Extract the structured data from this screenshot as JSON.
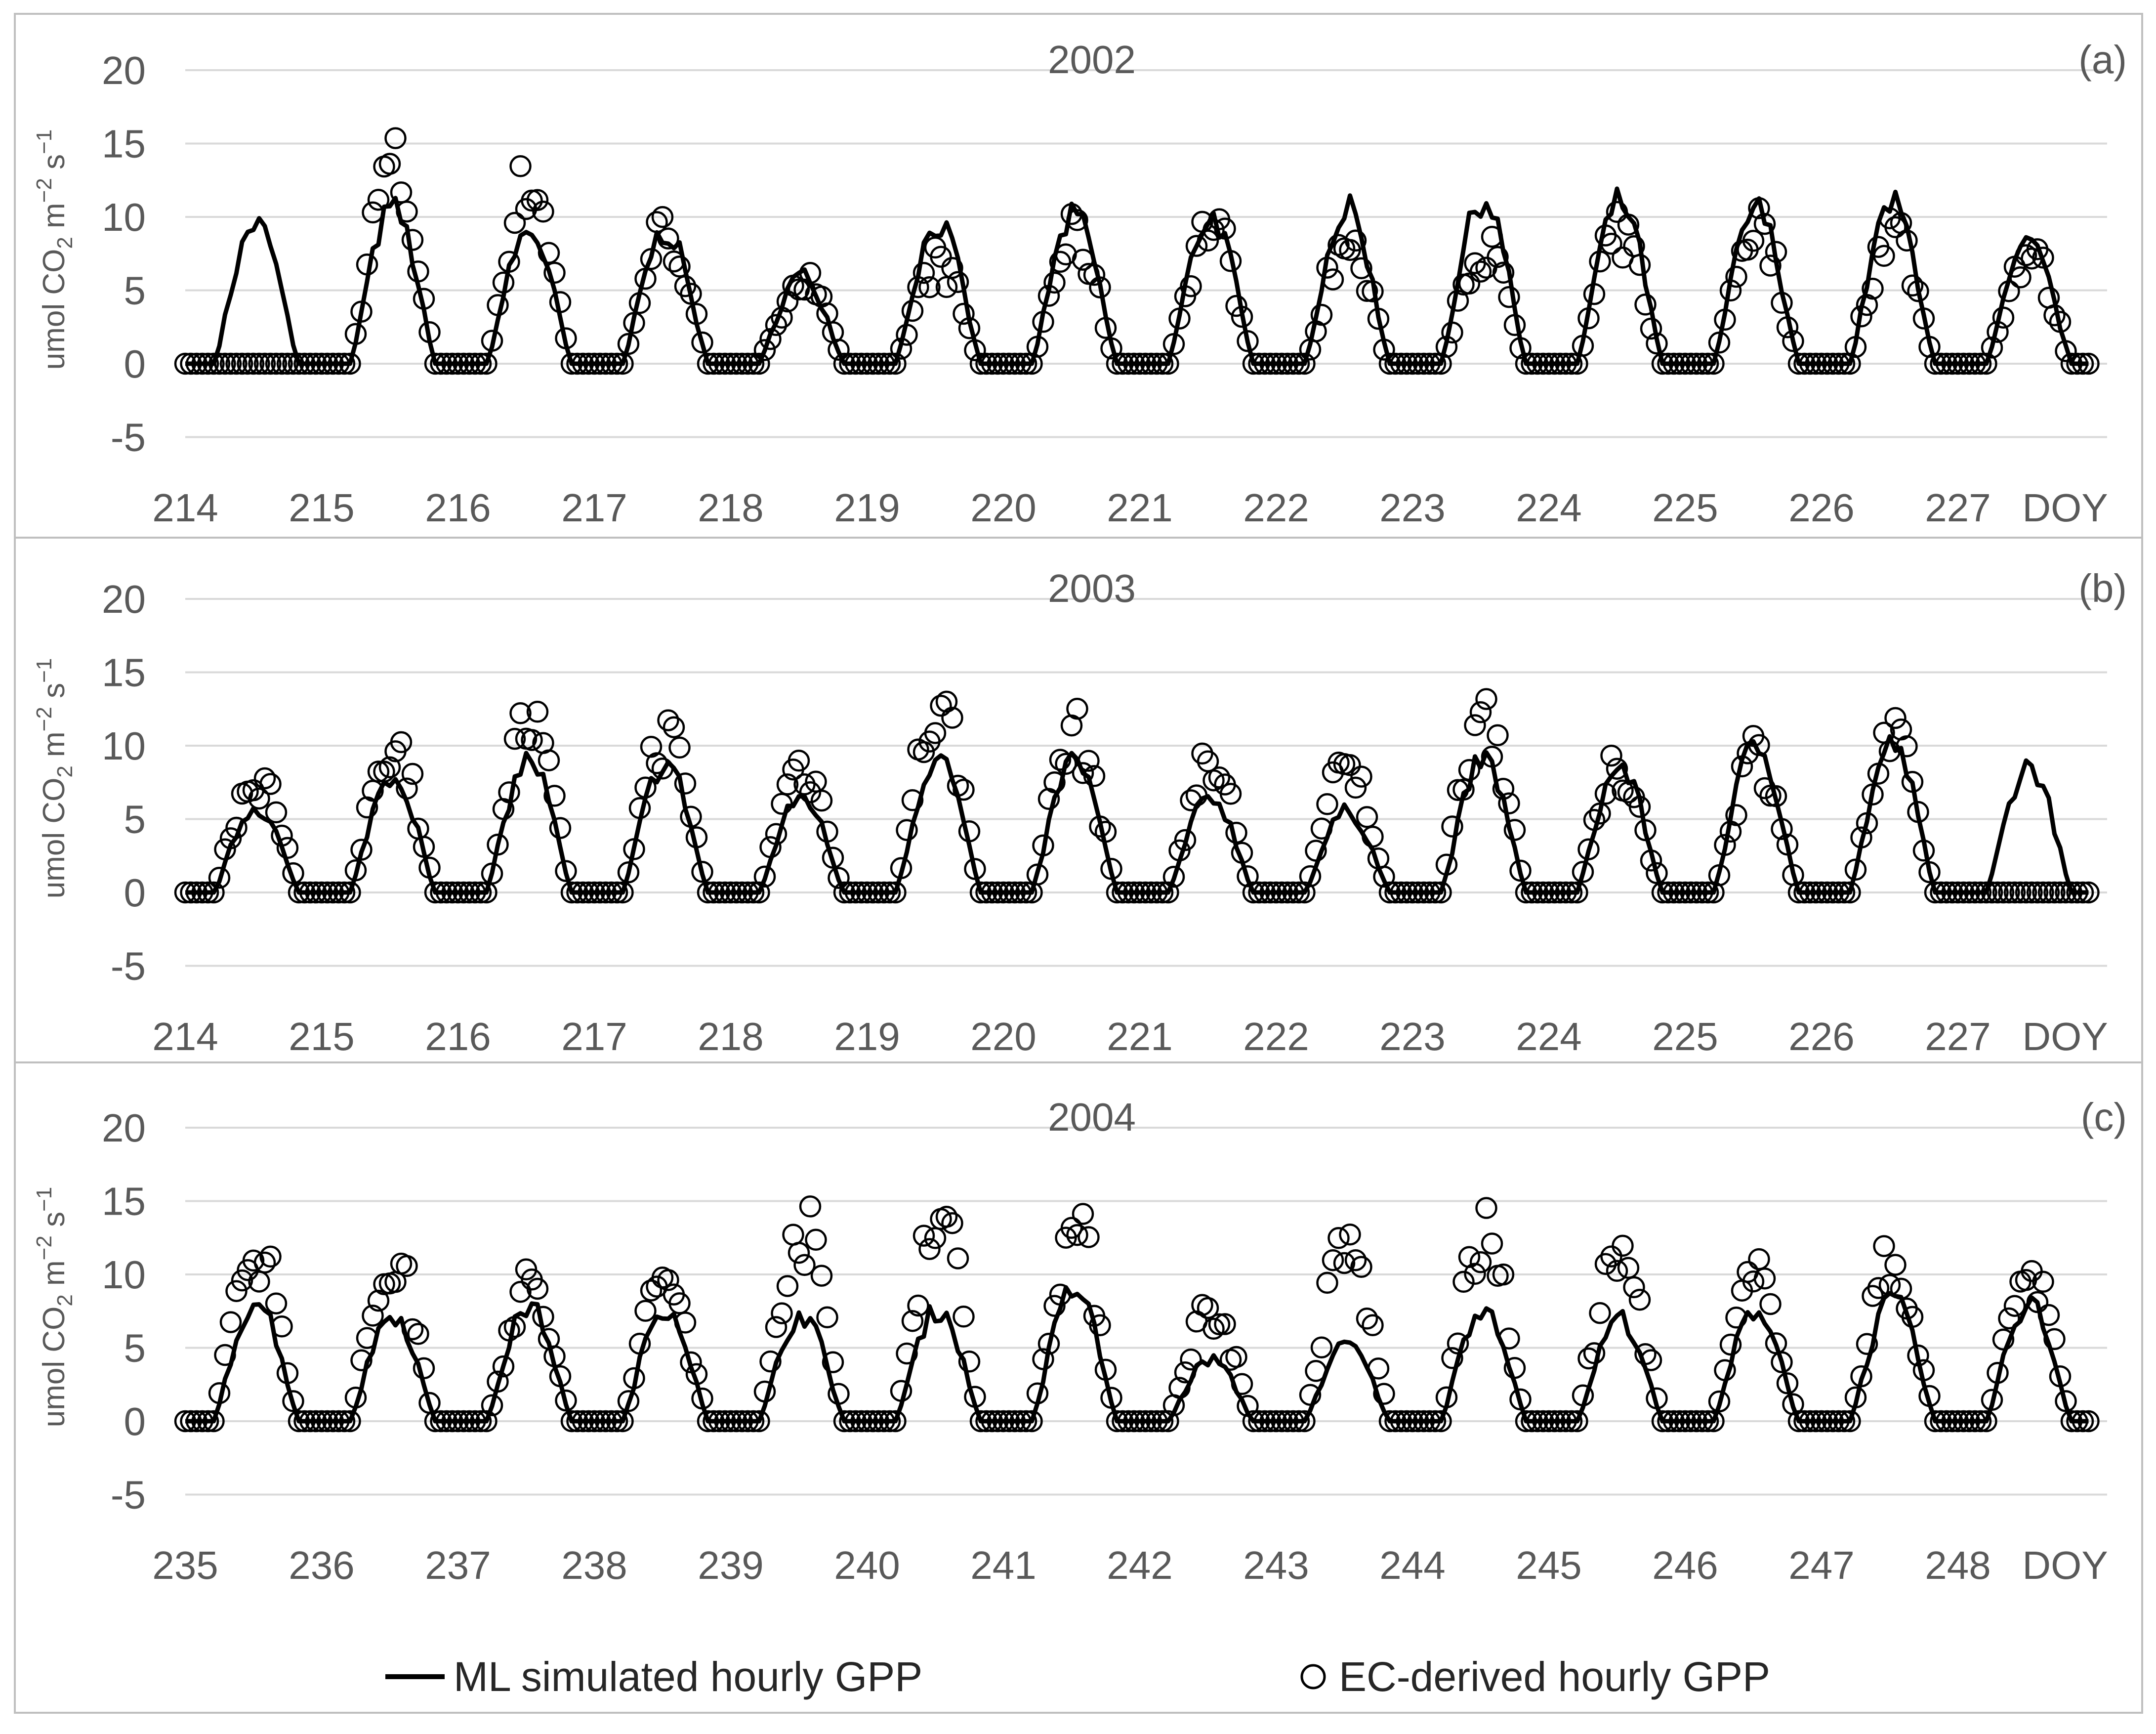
{
  "figure": {
    "legend": {
      "line_label": "ML simulated hourly GPP",
      "marker_label": "EC-derived hourly GPP"
    }
  },
  "chart_data": [
    {
      "type": "line",
      "title": "2002",
      "panel_label": "(a)",
      "ylabel_parts": [
        "umol CO",
        "2",
        " m",
        "−2",
        " s",
        "−1"
      ],
      "xlabel": "DOY",
      "ylim": [
        -7,
        20
      ],
      "yticks": [
        20,
        15,
        10,
        5,
        0,
        -5
      ],
      "xlim": [
        214,
        228
      ],
      "xticks": [
        214,
        215,
        216,
        217,
        218,
        219,
        220,
        221,
        222,
        223,
        224,
        225,
        226,
        227
      ],
      "grid": "horizontal",
      "sim_peaks": [
        9.5,
        10.5,
        9.0,
        9.0,
        6.0,
        9.5,
        10.0,
        10.0,
        10.5,
        11.2,
        11.0,
        10.5,
        10.8,
        8.0
      ],
      "series": [
        {
          "name": "ML simulated hourly GPP",
          "kind": "line",
          "values_note": "hourly, generated from daily peaks"
        },
        {
          "name": "EC-derived hourly GPP",
          "kind": "scatter",
          "obs_peaks": [
            null,
            15.2,
            14.0,
            10.2,
            6.5,
            7.8,
            9.8,
            10.8,
            9.2,
            9.0,
            10.0,
            10.8,
            10.5,
            8.5
          ]
        }
      ]
    },
    {
      "type": "line",
      "title": "2003",
      "panel_label": "(b)",
      "ylabel_parts": [
        "umol CO",
        "2",
        " m",
        "−2",
        " s",
        "−1"
      ],
      "xlabel": "DOY",
      "ylim": [
        -7,
        20
      ],
      "yticks": [
        20,
        15,
        10,
        5,
        0,
        -5
      ],
      "xlim": [
        214,
        228
      ],
      "xticks": [
        214,
        215,
        216,
        217,
        218,
        219,
        220,
        221,
        222,
        223,
        224,
        225,
        226,
        227
      ],
      "grid": "horizontal",
      "sim_peaks": [
        5.8,
        8.0,
        9.0,
        8.8,
        6.5,
        9.2,
        9.0,
        6.5,
        5.5,
        9.0,
        8.5,
        10.0,
        10.0,
        8.6
      ],
      "series": [
        {
          "name": "ML simulated hourly GPP",
          "kind": "line",
          "values_note": "hourly, generated from daily peaks"
        },
        {
          "name": "EC-derived hourly GPP",
          "kind": "scatter",
          "obs_peaks": [
            9.0,
            11.8,
            13.0,
            12.0,
            9.8,
            14.2,
            12.2,
            9.8,
            9.5,
            14.0,
            9.5,
            10.8,
            11.5,
            null
          ]
        }
      ]
    },
    {
      "type": "line",
      "title": "2004",
      "panel_label": "(c)",
      "ylabel_parts": [
        "umol CO",
        "2",
        " m",
        "−2",
        " s",
        "−1"
      ],
      "xlabel": "DOY",
      "ylim": [
        -7,
        20
      ],
      "yticks": [
        20,
        15,
        10,
        5,
        0,
        -5
      ],
      "xlim": [
        235,
        249
      ],
      "xticks": [
        235,
        236,
        237,
        238,
        239,
        240,
        241,
        242,
        243,
        244,
        245,
        246,
        247,
        248
      ],
      "grid": "horizontal",
      "sim_peaks": [
        8.2,
        7.3,
        7.8,
        7.8,
        7.2,
        7.6,
        9.0,
        4.2,
        5.2,
        7.8,
        7.0,
        7.6,
        8.2,
        8.0
      ],
      "series": [
        {
          "name": "ML simulated hourly GPP",
          "kind": "line",
          "values_note": "hourly, generated from daily peaks"
        },
        {
          "name": "EC-derived hourly GPP",
          "kind": "scatter",
          "obs_peaks": [
            13.6,
            12.3,
            10.2,
            11.0,
            15.0,
            16.2,
            14.5,
            8.5,
            13.3,
            14.0,
            12.6,
            10.8,
            12.2,
            11.6
          ]
        }
      ]
    }
  ]
}
